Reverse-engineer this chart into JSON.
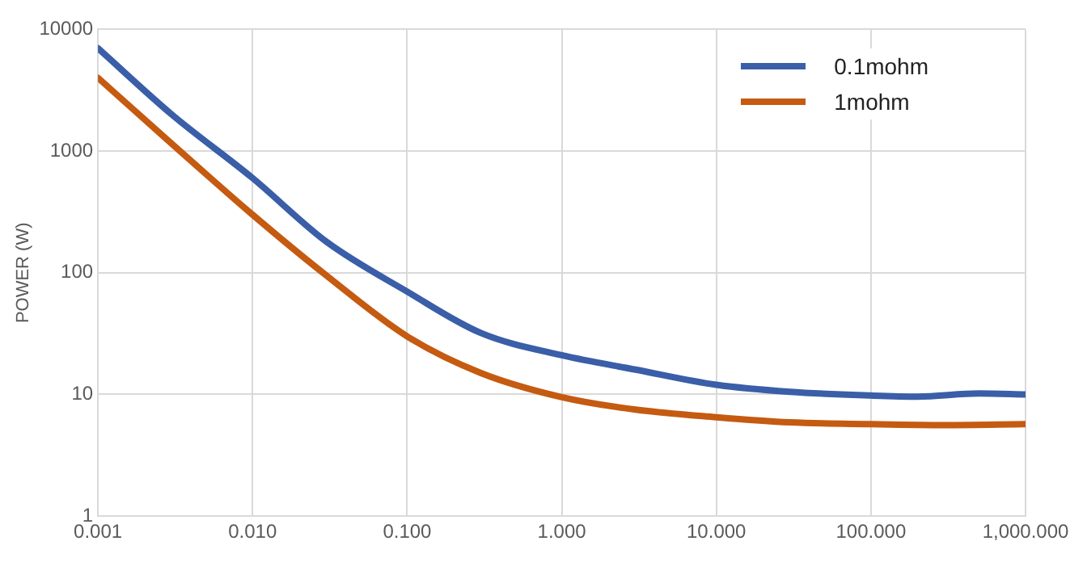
{
  "chart_data": {
    "type": "line",
    "ylabel": "POWER (W)",
    "log": "xy",
    "xlim": [
      0.001,
      1000
    ],
    "ylim": [
      1,
      10000
    ],
    "xticks": [
      {
        "value": 0.001,
        "label": "0.001"
      },
      {
        "value": 0.01,
        "label": "0.010"
      },
      {
        "value": 0.1,
        "label": "0.100"
      },
      {
        "value": 1,
        "label": "1.000"
      },
      {
        "value": 10,
        "label": "10.000"
      },
      {
        "value": 100,
        "label": "100.000"
      },
      {
        "value": 1000,
        "label": "1,000.000"
      }
    ],
    "yticks": [
      1,
      10,
      100,
      1000,
      10000
    ],
    "grid": true,
    "legend": "top right",
    "marker": "none",
    "line_style": "solid",
    "series": [
      {
        "name": "0.1mohm",
        "color": "#3a5ea8",
        "x": [
          0.001,
          0.003,
          0.01,
          0.03,
          0.1,
          0.3,
          1,
          3,
          10,
          30,
          100,
          200,
          500,
          1000
        ],
        "values": [
          7000,
          2000,
          600,
          180,
          70,
          32,
          21,
          16,
          12,
          10.5,
          9.8,
          9.6,
          10.2,
          10
        ]
      },
      {
        "name": "1mohm",
        "color": "#c55a11",
        "x": [
          0.001,
          0.003,
          0.01,
          0.03,
          0.1,
          0.3,
          1,
          3,
          10,
          30,
          100,
          300,
          1000
        ],
        "values": [
          4000,
          1150,
          300,
          95,
          30,
          15,
          9.5,
          7.5,
          6.5,
          5.9,
          5.7,
          5.6,
          5.7
        ]
      }
    ]
  }
}
